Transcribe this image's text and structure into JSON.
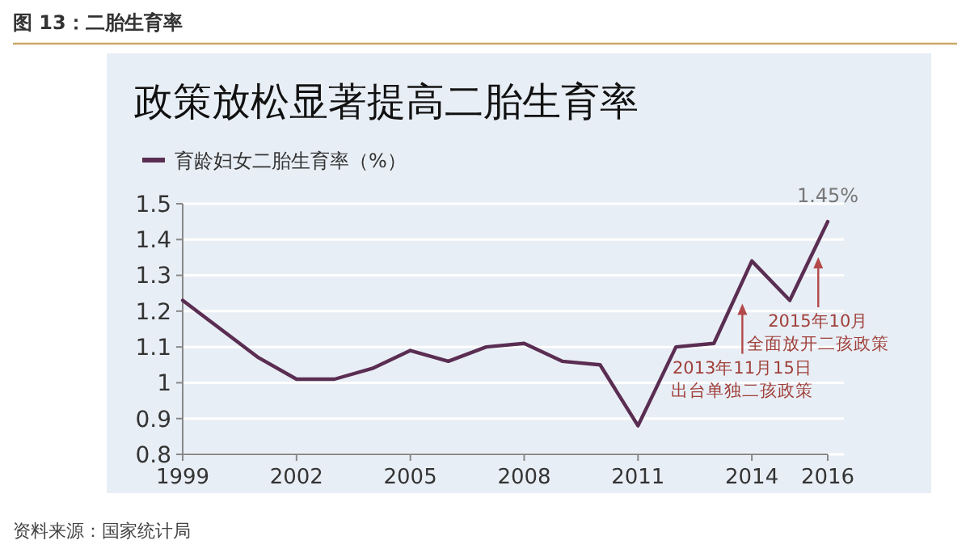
{
  "chart_data": {
    "type": "line",
    "title": "政策放松显著提高二胎生育率",
    "subtitle": "图 13：二胎生育率",
    "x": [
      1999,
      2000,
      2001,
      2002,
      2003,
      2004,
      2005,
      2006,
      2007,
      2008,
      2009,
      2010,
      2011,
      2012,
      2013,
      2014,
      2015,
      2016
    ],
    "series": [
      {
        "name": "育龄妇女二胎生育率（%）",
        "color": "#5a2d52",
        "values": [
          1.23,
          1.15,
          1.07,
          1.01,
          1.01,
          1.04,
          1.09,
          1.06,
          1.1,
          1.11,
          1.06,
          1.05,
          0.88,
          1.1,
          1.11,
          1.34,
          1.23,
          1.45
        ]
      }
    ],
    "xlim": [
      1999,
      2016
    ],
    "xticks": [
      1999,
      2002,
      2005,
      2008,
      2011,
      2014,
      2016
    ],
    "ylim": [
      0.8,
      1.5
    ],
    "yticks": [
      0.8,
      0.9,
      1,
      1.1,
      1.2,
      1.3,
      1.4,
      1.5
    ],
    "grid": "y",
    "legend": "top left",
    "marker": "none",
    "line_style": "solid",
    "annotations": [
      {
        "text": "1.45%",
        "x": 2016,
        "y": 1.45
      },
      {
        "text": "2013年11月15日出台单独二孩政策",
        "x": 2013.75,
        "y": 1.23
      },
      {
        "text": "2015年10月全面放开二孩政策",
        "x": 2015.75,
        "y": 1.36
      },
      "资料来源：国家统计局"
    ]
  }
}
